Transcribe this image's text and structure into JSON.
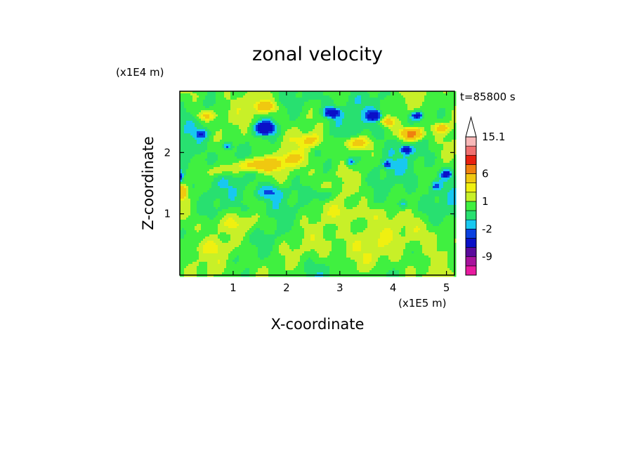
{
  "chart_data": {
    "type": "heatmap",
    "title": "zonal velocity",
    "xlabel": "X-coordinate",
    "ylabel": "Z-coordinate",
    "x_scale_label": "(x1E5 m)",
    "y_scale_label": "(x1E4 m)",
    "time_label": "t=85800 s",
    "xlim": [
      0,
      5.15
    ],
    "ylim": [
      0,
      3.0
    ],
    "x_ticks": [
      1,
      2,
      3,
      4,
      5
    ],
    "y_ticks": [
      1,
      2
    ],
    "x_tick_labels": [
      "1",
      "2",
      "3",
      "4",
      "5"
    ],
    "y_tick_labels": [
      "1",
      "2"
    ],
    "colorbar": {
      "levels": [
        -15,
        -12,
        -9,
        -6,
        -3,
        -2,
        -1,
        0,
        1,
        2,
        3,
        6,
        9,
        12,
        15.1
      ],
      "colors": [
        "#e81aa0",
        "#a8129c",
        "#5a0a9c",
        "#0a10c8",
        "#0a40e0",
        "#18c8f0",
        "#28e070",
        "#40f040",
        "#c8f028",
        "#f0f010",
        "#f0c810",
        "#f08010",
        "#e82010",
        "#f07070",
        "#f8b8b8"
      ],
      "extend_color": "#ffffff",
      "tick_labels": [
        {
          "label": "15.1",
          "level": 15.1
        },
        {
          "label": "6",
          "level": 6
        },
        {
          "label": "1",
          "level": 1
        },
        {
          "label": "-2",
          "level": -2
        },
        {
          "label": "-9",
          "level": -9
        }
      ]
    },
    "features": [
      {
        "x": 1.6,
        "z": 2.4,
        "value": -5,
        "sx": 0.22,
        "sz": 0.12
      },
      {
        "x": 2.85,
        "z": 2.65,
        "value": -5,
        "sx": 0.15,
        "sz": 0.08
      },
      {
        "x": 3.65,
        "z": 2.6,
        "value": -5,
        "sx": 0.12,
        "sz": 0.08
      },
      {
        "x": 4.45,
        "z": 2.6,
        "value": -4,
        "sx": 0.12,
        "sz": 0.07
      },
      {
        "x": 4.25,
        "z": 2.05,
        "value": -4,
        "sx": 0.1,
        "sz": 0.07
      },
      {
        "x": 3.2,
        "z": 1.85,
        "value": -3,
        "sx": 0.08,
        "sz": 0.06
      },
      {
        "x": 3.9,
        "z": 1.8,
        "value": -3,
        "sx": 0.08,
        "sz": 0.06
      },
      {
        "x": 5.0,
        "z": 1.65,
        "value": -4,
        "sx": 0.1,
        "sz": 0.07
      },
      {
        "x": 0.0,
        "z": 1.6,
        "value": -4,
        "sx": 0.06,
        "sz": 0.08
      },
      {
        "x": 0.9,
        "z": 2.1,
        "value": -3,
        "sx": 0.08,
        "sz": 0.06
      },
      {
        "x": 1.7,
        "z": 1.35,
        "value": -2.5,
        "sx": 0.25,
        "sz": 0.12
      },
      {
        "x": 2.7,
        "z": 1.3,
        "value": -2.5,
        "sx": 0.18,
        "sz": 0.1
      },
      {
        "x": 4.2,
        "z": 1.15,
        "value": -2.5,
        "sx": 0.1,
        "sz": 0.08
      },
      {
        "x": 4.8,
        "z": 1.45,
        "value": -2.5,
        "sx": 0.1,
        "sz": 0.08
      },
      {
        "x": 0.4,
        "z": 2.3,
        "value": -2.5,
        "sx": 0.12,
        "sz": 0.07
      },
      {
        "x": 1.5,
        "z": 1.8,
        "value": 5,
        "sx": 0.4,
        "sz": 0.1
      },
      {
        "x": 1.6,
        "z": 2.75,
        "value": 4,
        "sx": 0.2,
        "sz": 0.08
      },
      {
        "x": 2.45,
        "z": 2.2,
        "value": 3,
        "sx": 0.2,
        "sz": 0.1
      },
      {
        "x": 3.3,
        "z": 2.15,
        "value": 4,
        "sx": 0.25,
        "sz": 0.1
      },
      {
        "x": 4.35,
        "z": 2.3,
        "value": 8,
        "sx": 0.2,
        "sz": 0.1
      },
      {
        "x": 3.9,
        "z": 2.5,
        "value": 4,
        "sx": 0.12,
        "sz": 0.07
      },
      {
        "x": 4.9,
        "z": 2.4,
        "value": 3.5,
        "sx": 0.15,
        "sz": 0.08
      },
      {
        "x": 0.05,
        "z": 1.35,
        "value": 5,
        "sx": 0.08,
        "sz": 0.1
      },
      {
        "x": 0.5,
        "z": 2.6,
        "value": 3,
        "sx": 0.2,
        "sz": 0.08
      },
      {
        "x": 2.8,
        "z": 0.45,
        "value": 1.5,
        "sx": 1.0,
        "sz": 0.35
      },
      {
        "x": 1.2,
        "z": 0.85,
        "value": 1.5,
        "sx": 0.6,
        "sz": 0.15
      },
      {
        "x": 4.6,
        "z": 0.7,
        "value": 1.5,
        "sx": 0.4,
        "sz": 0.25
      },
      {
        "x": 3.3,
        "z": 1.0,
        "value": 1.2,
        "sx": 0.5,
        "sz": 0.12
      },
      {
        "x": 0.6,
        "z": 0.45,
        "value": 1.0,
        "sx": 0.35,
        "sz": 0.1
      },
      {
        "x": 2.1,
        "z": 1.9,
        "value": 2.5,
        "sx": 0.2,
        "sz": 0.1
      },
      {
        "x": 0.8,
        "z": 1.7,
        "value": 2.0,
        "sx": 0.3,
        "sz": 0.1
      }
    ]
  }
}
